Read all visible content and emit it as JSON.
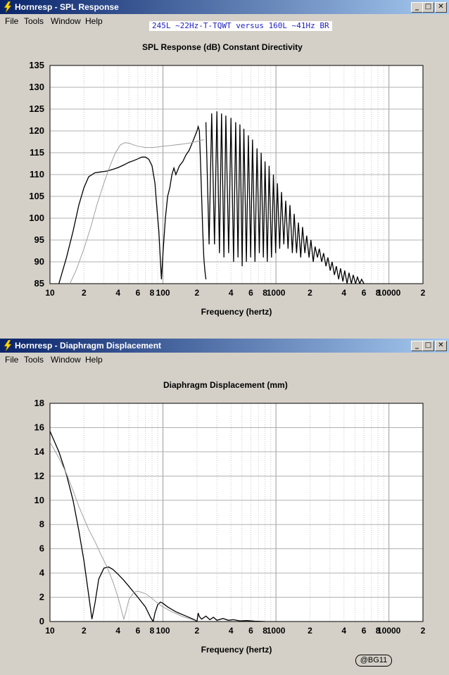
{
  "colors": {
    "titlebar": "#0a246a",
    "plot_bg": "#ffffff",
    "trace_primary": "#000000",
    "trace_secondary": "#a0a0a0",
    "banner_text": "#2020c0"
  },
  "menu": [
    "File",
    "Tools",
    "Window",
    "Help"
  ],
  "window_buttons": [
    "minimize-icon",
    "maximize-icon",
    "close-icon"
  ],
  "window_top": {
    "title": "Hornresp - SPL Response",
    "banner": "245L ~22Hz-T-TQWT versus 160L ~41Hz BR"
  },
  "window_bottom": {
    "title": "Hornresp - Diaphragm Displacement",
    "stamp": "@BG11"
  },
  "chart_data": [
    {
      "type": "line",
      "title": "SPL Response (dB)    Constant Directivity",
      "xlabel": "Frequency (hertz)",
      "ylabel": "",
      "xscale": "log",
      "xlim": [
        10,
        20000
      ],
      "ylim": [
        85,
        135
      ],
      "yticks": [
        85,
        90,
        95,
        100,
        105,
        110,
        115,
        120,
        125,
        130,
        135
      ],
      "xtick_labels": [
        [
          10,
          "10"
        ],
        [
          20,
          "2"
        ],
        [
          40,
          "4"
        ],
        [
          60,
          "6"
        ],
        [
          80,
          "8"
        ],
        [
          100,
          "100"
        ],
        [
          200,
          "2"
        ],
        [
          400,
          "4"
        ],
        [
          600,
          "6"
        ],
        [
          800,
          "8"
        ],
        [
          1000,
          "1000"
        ],
        [
          2000,
          "2"
        ],
        [
          4000,
          "4"
        ],
        [
          6000,
          "6"
        ],
        [
          8000,
          "8"
        ],
        [
          10000,
          "10000"
        ],
        [
          20000,
          "2"
        ]
      ],
      "grid": true,
      "series": [
        {
          "role": "primary",
          "x": [
            12,
            14,
            16,
            18,
            20,
            22,
            25,
            28,
            32,
            36,
            40,
            45,
            50,
            55,
            60,
            65,
            70,
            75,
            80,
            85,
            88,
            92,
            95,
            97,
            100,
            105,
            110,
            115,
            120,
            125,
            130,
            140,
            150,
            160,
            170,
            180,
            190,
            200,
            205,
            210,
            215,
            220,
            225,
            230,
            235,
            240
          ],
          "y": [
            85,
            91,
            97,
            103,
            107,
            109.5,
            110.4,
            110.6,
            110.8,
            111.2,
            111.6,
            112.2,
            112.8,
            113.2,
            113.6,
            114,
            114,
            113.5,
            112,
            108,
            103,
            97,
            90,
            86,
            92,
            100,
            105,
            107,
            110,
            111.5,
            110,
            112,
            113,
            114.5,
            115.5,
            117,
            118.5,
            120,
            121,
            120,
            113,
            105,
            97,
            91,
            88,
            86
          ]
        },
        {
          "role": "secondary",
          "x": [
            15,
            17,
            20,
            23,
            26,
            30,
            34,
            38,
            42,
            46,
            50,
            55,
            60,
            70,
            80,
            90,
            100,
            120,
            150,
            180,
            200,
            230
          ],
          "y": [
            85,
            88,
            93,
            98,
            103,
            108,
            112,
            115,
            116.8,
            117.3,
            117.2,
            116.8,
            116.5,
            116.2,
            116.2,
            116.3,
            116.5,
            116.7,
            117,
            117.3,
            117.6,
            118
          ]
        },
        {
          "role": "primary-resonances",
          "f": [
            240,
            270,
            300,
            330,
            360,
            400,
            440,
            480,
            520,
            570,
            620,
            680,
            740,
            800,
            870,
            950,
            1030,
            1120,
            1220,
            1330,
            1450,
            1580,
            1720,
            1870,
            2040,
            2220,
            2420,
            2640,
            2880,
            3140,
            3420,
            3730,
            4060,
            4430,
            4830,
            5260,
            5730
          ],
          "peak": [
            122,
            124,
            124.5,
            124,
            123.5,
            123,
            122,
            121.5,
            120.5,
            119,
            118,
            116,
            115,
            113,
            112,
            110,
            108,
            106,
            104,
            103,
            101,
            99,
            98,
            96,
            95,
            93.5,
            93,
            92,
            91,
            90,
            89,
            88.5,
            88,
            87.5,
            87,
            86.5,
            86
          ],
          "dip": [
            94,
            94,
            92,
            91,
            92,
            90,
            91,
            89,
            90,
            91,
            90,
            92,
            91,
            90,
            91,
            92,
            93,
            94,
            93,
            92,
            92,
            91,
            92,
            91,
            90,
            91,
            90,
            89,
            88,
            87,
            86,
            85.5,
            85,
            85,
            85,
            85,
            85
          ]
        }
      ]
    },
    {
      "type": "line",
      "title": "Diaphragm Displacement (mm)",
      "xlabel": "Frequency (hertz)",
      "ylabel": "",
      "xscale": "log",
      "xlim": [
        10,
        20000
      ],
      "ylim": [
        0,
        18
      ],
      "yticks": [
        0,
        2,
        4,
        6,
        8,
        10,
        12,
        14,
        16,
        18
      ],
      "xtick_labels": [
        [
          10,
          "10"
        ],
        [
          20,
          "2"
        ],
        [
          40,
          "4"
        ],
        [
          60,
          "6"
        ],
        [
          80,
          "8"
        ],
        [
          100,
          "100"
        ],
        [
          200,
          "2"
        ],
        [
          400,
          "4"
        ],
        [
          600,
          "6"
        ],
        [
          800,
          "8"
        ],
        [
          1000,
          "1000"
        ],
        [
          2000,
          "2"
        ],
        [
          4000,
          "4"
        ],
        [
          6000,
          "6"
        ],
        [
          8000,
          "8"
        ],
        [
          10000,
          "10000"
        ],
        [
          20000,
          "2"
        ]
      ],
      "grid": true,
      "series": [
        {
          "role": "primary",
          "x": [
            10,
            12,
            14,
            16,
            18,
            20,
            22,
            23.5,
            25,
            27,
            30,
            33,
            36,
            40,
            45,
            50,
            60,
            70,
            78,
            82,
            85,
            90,
            95,
            100,
            110,
            130,
            160,
            190,
            200,
            205,
            210,
            220,
            240,
            260,
            280,
            300,
            340,
            380,
            420,
            480,
            550,
            650,
            800
          ],
          "y": [
            15.7,
            14,
            12.1,
            10,
            7.5,
            5,
            2.2,
            0.2,
            1.5,
            3.5,
            4.4,
            4.5,
            4.3,
            3.9,
            3.4,
            2.9,
            2,
            1.2,
            0.3,
            0,
            0.7,
            1.4,
            1.6,
            1.5,
            1.2,
            0.8,
            0.45,
            0.15,
            0,
            0.7,
            0.4,
            0.2,
            0.45,
            0.15,
            0.35,
            0.1,
            0.25,
            0.1,
            0.15,
            0.05,
            0.08,
            0.03,
            0
          ]
        },
        {
          "role": "secondary",
          "x": [
            10,
            12,
            14,
            16,
            18,
            20,
            22,
            25,
            28,
            32,
            36,
            40,
            43,
            45,
            47,
            50,
            55,
            60,
            70,
            80,
            90,
            100,
            120,
            150,
            190
          ],
          "y": [
            14.8,
            13.5,
            12.2,
            10.8,
            9.5,
            8.5,
            7.6,
            6.6,
            5.6,
            4.5,
            3.3,
            2,
            0.9,
            0.2,
            0.8,
            1.8,
            2.4,
            2.5,
            2.3,
            1.9,
            1.5,
            1.2,
            0.8,
            0.4,
            0.1
          ]
        }
      ]
    }
  ]
}
